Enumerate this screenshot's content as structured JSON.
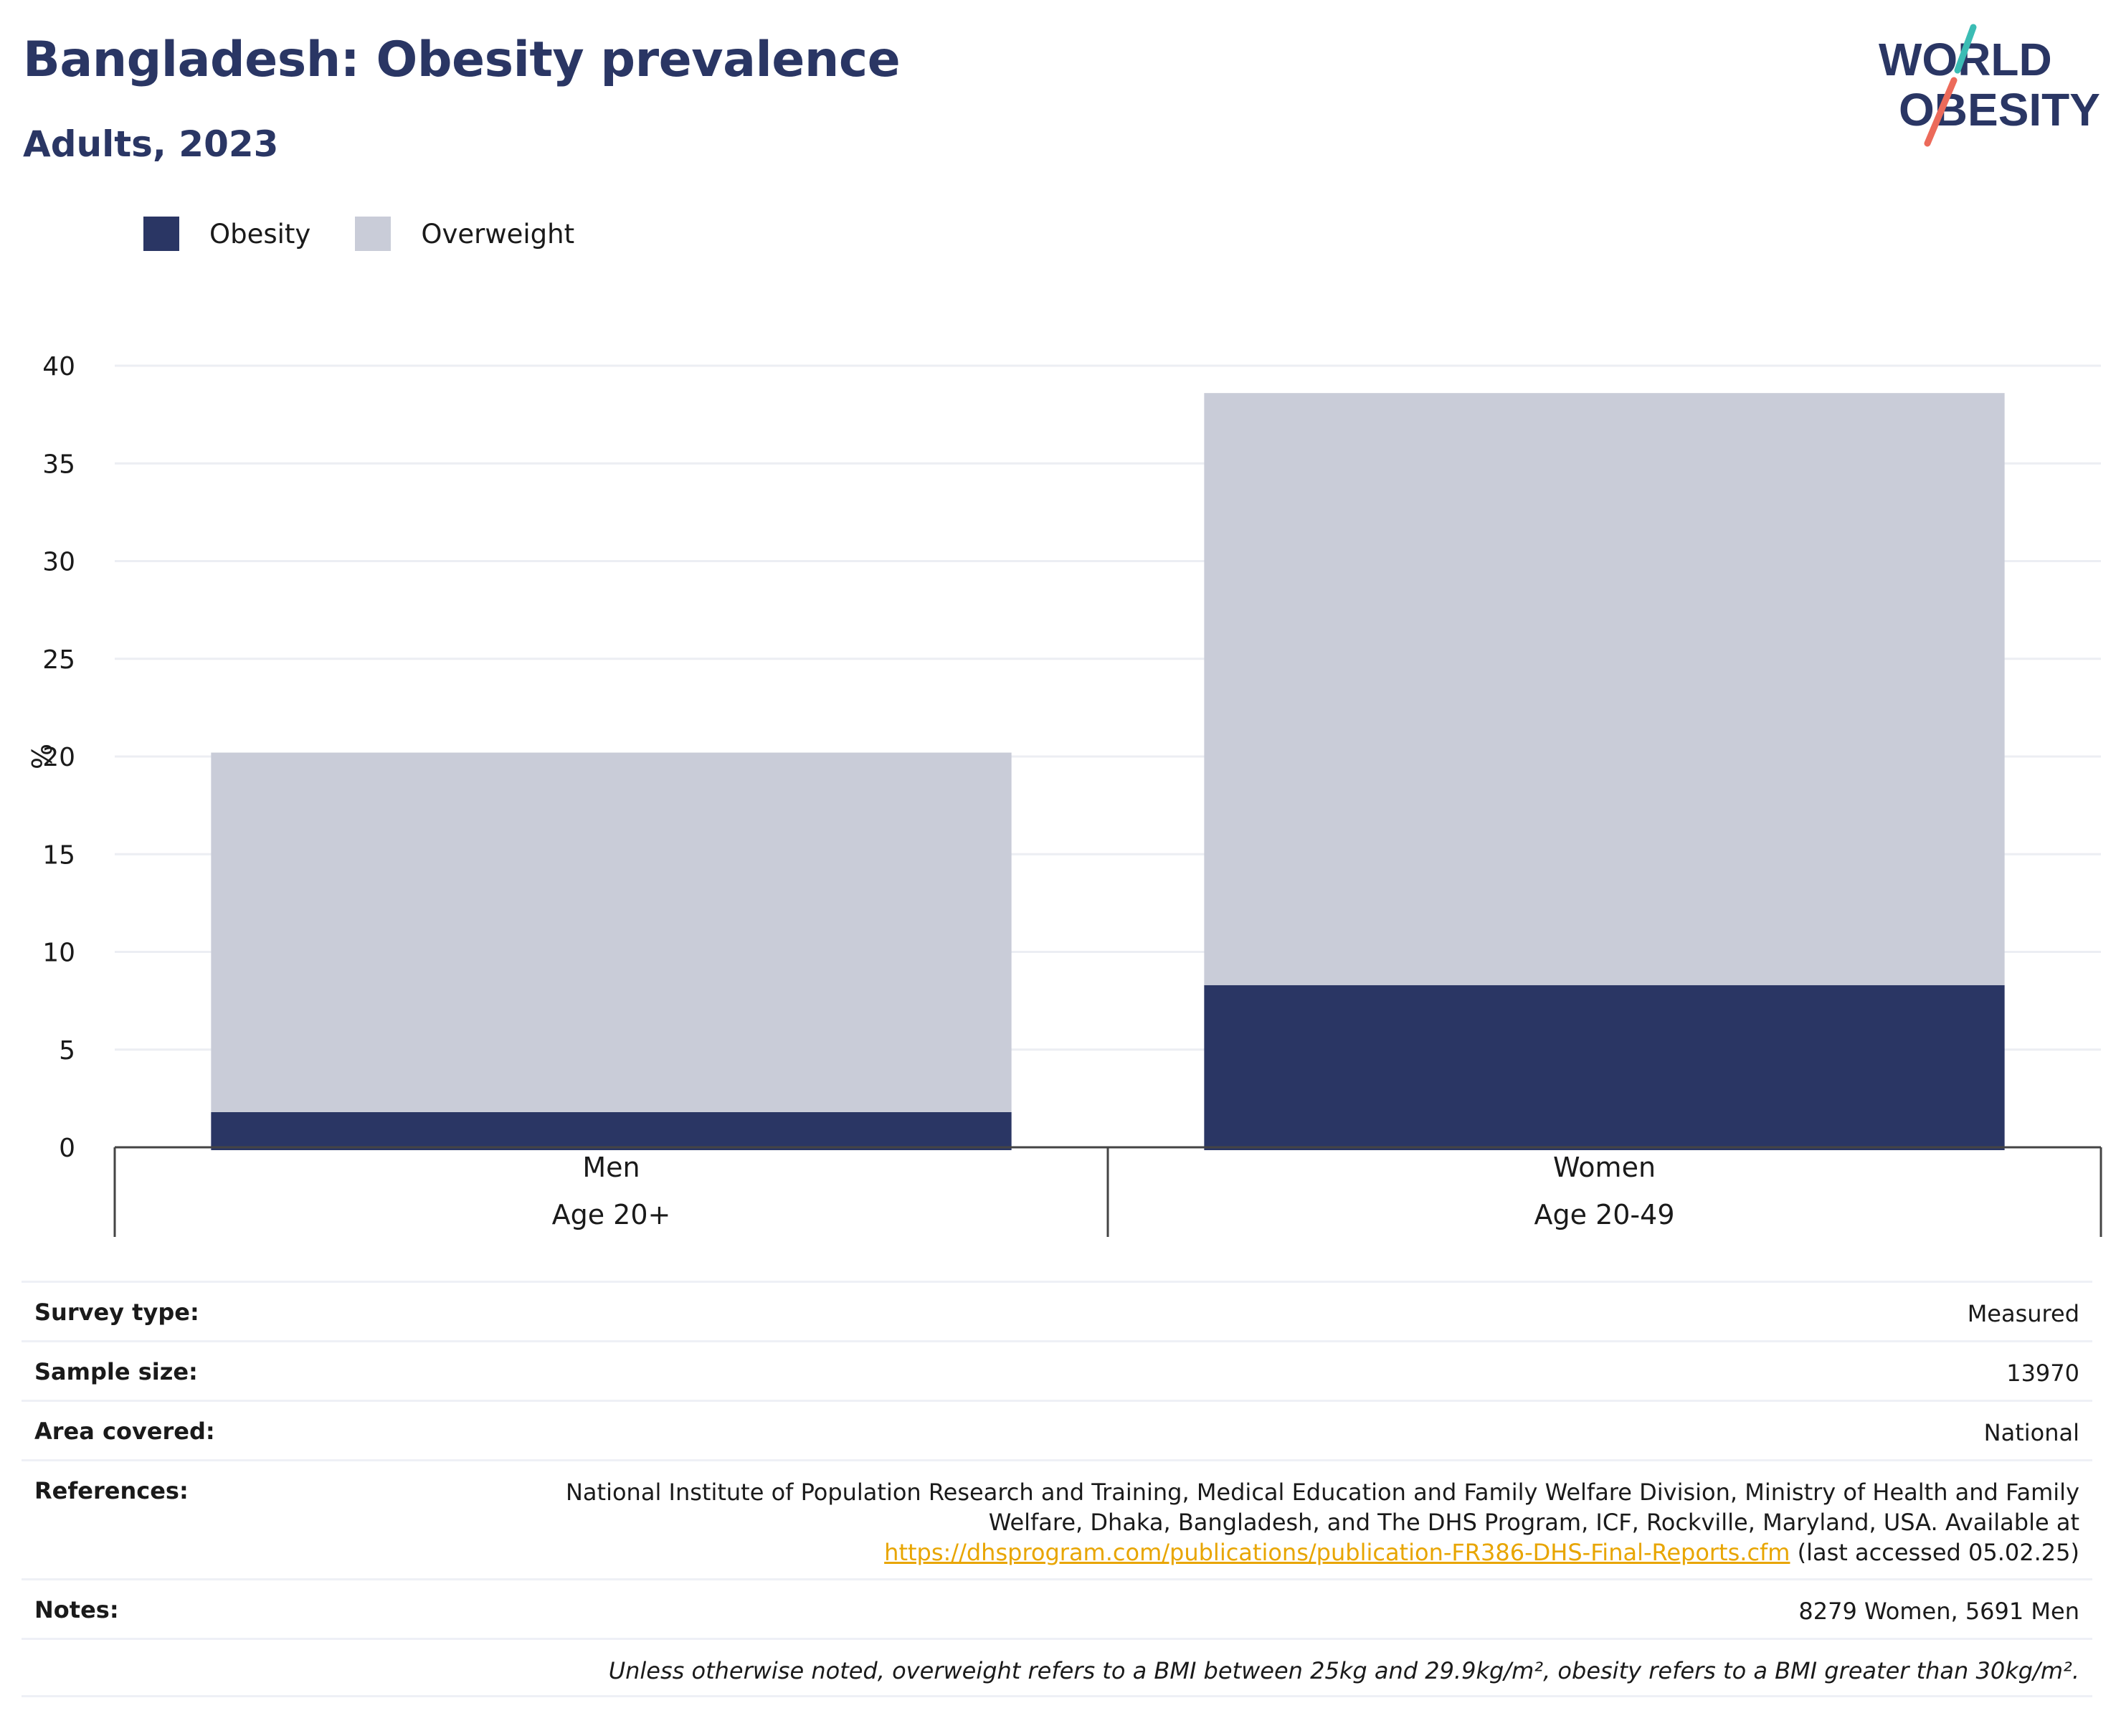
{
  "header": {
    "title": "Bangladesh: Obesity prevalence",
    "subtitle": "Adults, 2023",
    "logo_line1": "WORLD",
    "logo_line2": "OBESITY"
  },
  "colors": {
    "obesity": "#2a3664",
    "overweight": "#c9ccd8",
    "grid": "#eceef3",
    "axis": "#444444",
    "logo_text": "#2a3664",
    "logo_teal": "#3bbcb4",
    "logo_coral": "#ec6a5a",
    "link": "#e8a500"
  },
  "legend": [
    {
      "label": "Obesity",
      "color": "#2a3664"
    },
    {
      "label": "Overweight",
      "color": "#c9ccd8"
    }
  ],
  "chart_data": {
    "type": "bar",
    "stacked": true,
    "categories": [
      "Men",
      "Women"
    ],
    "subcategories": [
      "Age 20+",
      "Age 20-49"
    ],
    "series": [
      {
        "name": "Obesity",
        "values": [
          1.8,
          8.3
        ]
      },
      {
        "name": "Overweight",
        "values": [
          18.4,
          30.3
        ]
      }
    ],
    "ylabel": "%",
    "ylim": [
      0,
      40
    ],
    "yticks": [
      0,
      5,
      10,
      15,
      20,
      25,
      30,
      35,
      40
    ],
    "grid": true,
    "legend_position": "top-left"
  },
  "info": {
    "survey_type": {
      "label": "Survey type:",
      "value": "Measured"
    },
    "sample_size": {
      "label": "Sample size:",
      "value": "13970"
    },
    "area_covered": {
      "label": "Area covered:",
      "value": "National"
    },
    "references": {
      "label": "References:",
      "line1": "National Institute of Population Research and Training, Medical Education and Family Welfare Division, Ministry of Health and Family",
      "line2": "Welfare, Dhaka, Bangladesh, and The DHS Program, ICF, Rockville, Maryland, USA. Available at",
      "link": "https://dhsprogram.com/publications/publication-FR386-DHS-Final-Reports.cfm",
      "suffix": "(last accessed 05.02.25)"
    },
    "notes": {
      "label": "Notes:",
      "value": "8279 Women, 5691 Men"
    },
    "footnote": "Unless otherwise noted, overweight refers to a BMI between 25kg and 29.9kg/m², obesity refers to a BMI greater than 30kg/m²."
  }
}
